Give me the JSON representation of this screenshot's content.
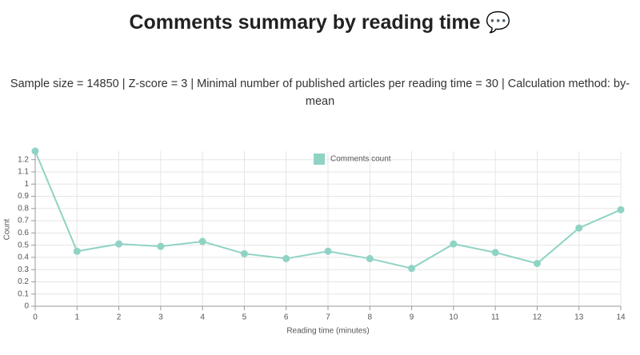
{
  "chart_data": {
    "type": "line",
    "title": "Comments summary by reading time 💬",
    "subtitle": "Sample size = 14850 | Z-score = 3 | Minimal number of published articles per reading time = 30 | Calculation method: by-mean",
    "x_label": "Reading time (minutes)",
    "y_label": "Count",
    "x": [
      0,
      1,
      2,
      3,
      4,
      5,
      6,
      7,
      8,
      9,
      10,
      11,
      12,
      13,
      14
    ],
    "series": [
      {
        "name": "Comments count",
        "color": "#8fd3c4",
        "values": [
          1.27,
          0.45,
          0.51,
          0.49,
          0.53,
          0.43,
          0.39,
          0.45,
          0.39,
          0.31,
          0.51,
          0.44,
          0.35,
          0.64,
          0.79
        ]
      }
    ],
    "xlim": [
      0,
      14
    ],
    "xticks": [
      0,
      1,
      2,
      3,
      4,
      5,
      6,
      7,
      8,
      9,
      10,
      11,
      12,
      13,
      14
    ],
    "ylim": [
      0,
      1.27
    ],
    "yticks": [
      0,
      0.1,
      0.2,
      0.3,
      0.4,
      0.5,
      0.6,
      0.7,
      0.8,
      0.9,
      1,
      1.1,
      1.2
    ],
    "grid": true,
    "legend": "top"
  }
}
